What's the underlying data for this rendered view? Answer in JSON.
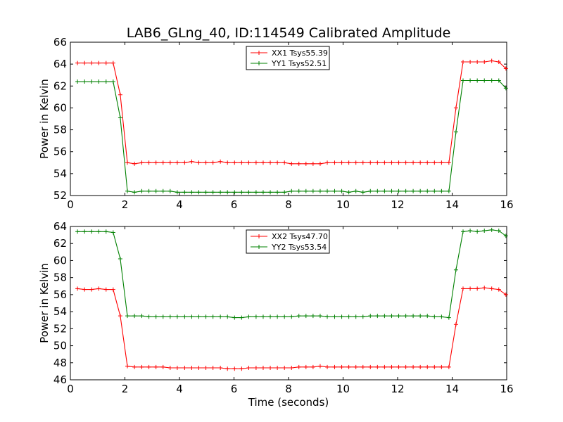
{
  "figure": {
    "title": "LAB6_GLng_40, ID:114549 Calibrated Amplitude"
  },
  "chart_data": [
    {
      "type": "line",
      "title": "LAB6_GLng_40, ID:114549 Calibrated Amplitude",
      "xlabel": "",
      "ylabel": "Power in Kelvin",
      "xlim": [
        0,
        16
      ],
      "ylim": [
        52,
        66
      ],
      "xticks": [
        0,
        2,
        4,
        6,
        8,
        10,
        12,
        14,
        16
      ],
      "yticks": [
        52,
        54,
        56,
        58,
        60,
        62,
        64,
        66
      ],
      "grid": false,
      "legend": "top-center",
      "x": [
        0.26,
        0.52,
        0.78,
        1.04,
        1.31,
        1.57,
        1.83,
        2.09,
        2.35,
        2.62,
        2.88,
        3.14,
        3.4,
        3.66,
        3.92,
        4.19,
        4.45,
        4.71,
        4.97,
        5.23,
        5.5,
        5.76,
        6.02,
        6.28,
        6.54,
        6.81,
        7.07,
        7.33,
        7.59,
        7.85,
        8.11,
        8.38,
        8.64,
        8.9,
        9.16,
        9.42,
        9.69,
        9.95,
        10.21,
        10.47,
        10.73,
        11.0,
        11.26,
        11.52,
        11.78,
        12.04,
        12.3,
        12.57,
        12.83,
        13.09,
        13.35,
        13.61,
        13.88,
        14.14,
        14.4,
        14.66,
        14.92,
        15.18,
        15.45,
        15.71,
        15.97
      ],
      "series": [
        {
          "name": "XX1 Tsys55.39",
          "color": "#ff0000",
          "values": [
            64.1,
            64.1,
            64.1,
            64.1,
            64.1,
            64.1,
            61.2,
            55.0,
            54.9,
            55.0,
            55.0,
            55.0,
            55.0,
            55.0,
            55.0,
            55.0,
            55.1,
            55.0,
            55.0,
            55.0,
            55.1,
            55.0,
            55.0,
            55.0,
            55.0,
            55.0,
            55.0,
            55.0,
            55.0,
            55.0,
            54.9,
            54.9,
            54.9,
            54.9,
            54.9,
            55.0,
            55.0,
            55.0,
            55.0,
            55.0,
            55.0,
            55.0,
            55.0,
            55.0,
            55.0,
            55.0,
            55.0,
            55.0,
            55.0,
            55.0,
            55.0,
            55.0,
            55.0,
            60.0,
            64.2,
            64.2,
            64.2,
            64.2,
            64.3,
            64.2,
            63.6
          ]
        },
        {
          "name": "YY1 Tsys52.51",
          "color": "#008000",
          "values": [
            62.4,
            62.4,
            62.4,
            62.4,
            62.4,
            62.4,
            59.1,
            52.4,
            52.3,
            52.4,
            52.4,
            52.4,
            52.4,
            52.4,
            52.3,
            52.3,
            52.3,
            52.3,
            52.3,
            52.3,
            52.3,
            52.3,
            52.3,
            52.3,
            52.3,
            52.3,
            52.3,
            52.3,
            52.3,
            52.3,
            52.4,
            52.4,
            52.4,
            52.4,
            52.4,
            52.4,
            52.4,
            52.4,
            52.3,
            52.4,
            52.3,
            52.4,
            52.4,
            52.4,
            52.4,
            52.4,
            52.4,
            52.4,
            52.4,
            52.4,
            52.4,
            52.4,
            52.4,
            57.8,
            62.5,
            62.5,
            62.5,
            62.5,
            62.5,
            62.5,
            61.8
          ]
        }
      ]
    },
    {
      "type": "line",
      "title": "",
      "xlabel": "Time (seconds)",
      "ylabel": "Power in Kelvin",
      "xlim": [
        0,
        16
      ],
      "ylim": [
        46,
        64
      ],
      "xticks": [
        0,
        2,
        4,
        6,
        8,
        10,
        12,
        14,
        16
      ],
      "yticks": [
        46,
        48,
        50,
        52,
        54,
        56,
        58,
        60,
        62,
        64
      ],
      "grid": false,
      "legend": "top-center",
      "x": [
        0.26,
        0.52,
        0.78,
        1.04,
        1.31,
        1.57,
        1.83,
        2.09,
        2.35,
        2.62,
        2.88,
        3.14,
        3.4,
        3.66,
        3.92,
        4.19,
        4.45,
        4.71,
        4.97,
        5.23,
        5.5,
        5.76,
        6.02,
        6.28,
        6.54,
        6.81,
        7.07,
        7.33,
        7.59,
        7.85,
        8.11,
        8.38,
        8.64,
        8.9,
        9.16,
        9.42,
        9.69,
        9.95,
        10.21,
        10.47,
        10.73,
        11.0,
        11.26,
        11.52,
        11.78,
        12.04,
        12.3,
        12.57,
        12.83,
        13.09,
        13.35,
        13.61,
        13.88,
        14.14,
        14.4,
        14.66,
        14.92,
        15.18,
        15.45,
        15.71,
        15.97
      ],
      "series": [
        {
          "name": "XX2 Tsys47.70",
          "color": "#ff0000",
          "values": [
            56.7,
            56.6,
            56.6,
            56.7,
            56.6,
            56.6,
            53.5,
            47.6,
            47.5,
            47.5,
            47.5,
            47.5,
            47.5,
            47.4,
            47.4,
            47.4,
            47.4,
            47.4,
            47.4,
            47.4,
            47.4,
            47.3,
            47.3,
            47.3,
            47.4,
            47.4,
            47.4,
            47.4,
            47.4,
            47.4,
            47.4,
            47.5,
            47.5,
            47.5,
            47.6,
            47.5,
            47.5,
            47.5,
            47.5,
            47.5,
            47.5,
            47.5,
            47.5,
            47.5,
            47.5,
            47.5,
            47.5,
            47.5,
            47.5,
            47.5,
            47.5,
            47.5,
            47.5,
            52.5,
            56.7,
            56.7,
            56.7,
            56.8,
            56.7,
            56.6,
            56.0
          ]
        },
        {
          "name": "YY2 Tsys53.54",
          "color": "#008000",
          "values": [
            63.4,
            63.4,
            63.4,
            63.4,
            63.4,
            63.3,
            60.2,
            53.5,
            53.5,
            53.5,
            53.4,
            53.4,
            53.4,
            53.4,
            53.4,
            53.4,
            53.4,
            53.4,
            53.4,
            53.4,
            53.4,
            53.4,
            53.3,
            53.3,
            53.4,
            53.4,
            53.4,
            53.4,
            53.4,
            53.4,
            53.4,
            53.5,
            53.5,
            53.5,
            53.5,
            53.4,
            53.4,
            53.4,
            53.4,
            53.4,
            53.4,
            53.5,
            53.5,
            53.5,
            53.5,
            53.5,
            53.5,
            53.5,
            53.5,
            53.5,
            53.4,
            53.4,
            53.3,
            58.9,
            63.4,
            63.5,
            63.4,
            63.5,
            63.6,
            63.5,
            62.9
          ]
        }
      ]
    }
  ]
}
